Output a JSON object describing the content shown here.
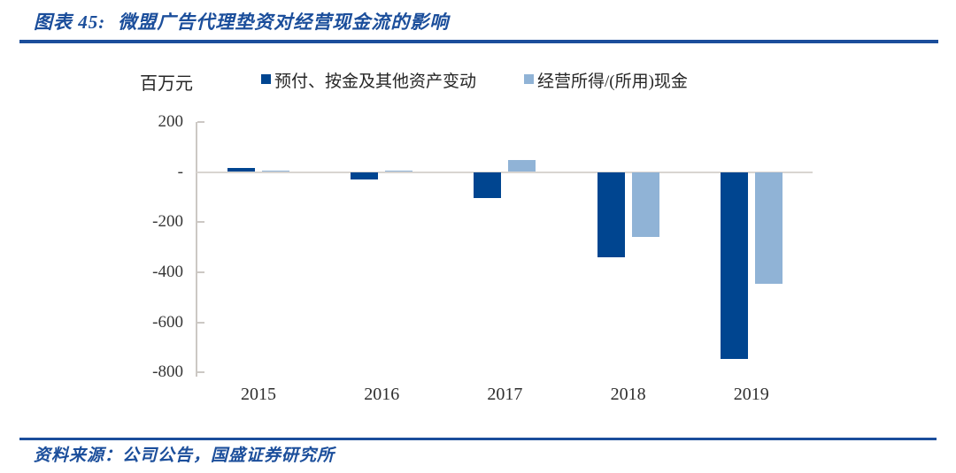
{
  "header": {
    "figure_label": "图表 45:",
    "title": "微盟广告代理垫资对经营现金流的影响"
  },
  "footer": {
    "source_text": "资料来源：公司公告，国盛证券研究所"
  },
  "colors": {
    "accent_blue": "#1b4e9b",
    "dark_series": "#004590",
    "light_series": "#90b3d6",
    "axis_gray": "#ccc8c4",
    "zero_line_gray": "#d9d5d1"
  },
  "chart_data": {
    "type": "bar",
    "title": "微盟广告代理垫资对经营现金流的影响",
    "unit_label": "百万元",
    "categories": [
      "2015",
      "2016",
      "2017",
      "2018",
      "2019"
    ],
    "series": [
      {
        "name": "预付、按金及其他资产变动",
        "color": "#004590",
        "values": [
          15,
          -30,
          -105,
          -340,
          -745
        ]
      },
      {
        "name": "经营所得/(所用)现金",
        "color": "#90b3d6",
        "values": [
          4,
          7,
          47,
          -260,
          -447
        ]
      }
    ],
    "ylim": [
      -800,
      200
    ],
    "y_tick_values": [
      200,
      0,
      -200,
      -400,
      -600,
      -800
    ],
    "y_tick_labels": [
      "200",
      "-",
      "-200",
      "-400",
      "-600",
      "-800"
    ],
    "grid": false,
    "legend_position": "top"
  }
}
